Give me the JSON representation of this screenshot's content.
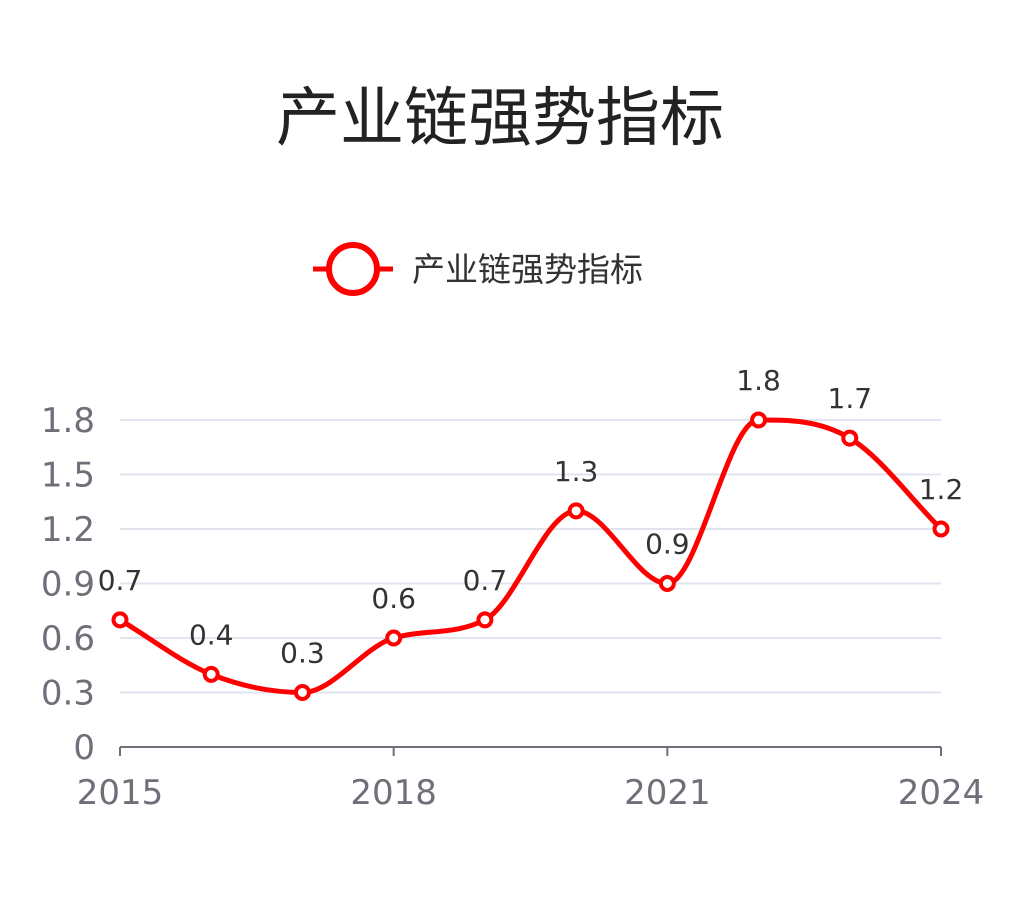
{
  "chart_data": {
    "type": "line",
    "title": "产业链强势指标",
    "legend": {
      "entries": [
        "产业链强势指标"
      ],
      "position": "top-center"
    },
    "x": [
      "2015",
      "2016",
      "2017",
      "2018",
      "2019",
      "2020",
      "2021",
      "2022",
      "2023",
      "2024"
    ],
    "x_tick_labels": [
      "2015",
      "2018",
      "2021",
      "2024"
    ],
    "series": [
      {
        "name": "产业链强势指标",
        "values": [
          0.7,
          0.4,
          0.3,
          0.6,
          0.7,
          1.3,
          0.9,
          1.8,
          1.7,
          1.2
        ],
        "smooth": true,
        "show_data_labels": true
      }
    ],
    "ylim": [
      0,
      1.8
    ],
    "y_ticks": [
      0,
      0.3,
      0.6,
      0.9,
      1.2,
      1.5,
      1.8
    ],
    "y_tick_labels": [
      "0",
      "0.3",
      "0.6",
      "0.9",
      "1.2",
      "1.5",
      "1.8"
    ],
    "grid": true,
    "colors": {
      "series": "#ff0000",
      "grid": "#dfe4ef",
      "axis": "#6e7079",
      "tick_text": "#6e7079",
      "label_text": "#333333",
      "title_text": "#222222"
    }
  }
}
